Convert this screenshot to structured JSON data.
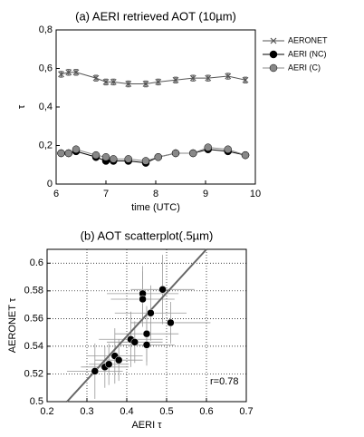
{
  "chart_data": [
    {
      "type": "line",
      "title": "(a) AERI retrieved AOT (10µm)",
      "x_label": "time (UTC)",
      "y_label": "τ",
      "xlim": [
        6,
        10
      ],
      "xticks": [
        6,
        7,
        8,
        9,
        10
      ],
      "ylim": [
        0,
        0.8
      ],
      "yticks": [
        0,
        {
          "value": 0.2,
          "label": "0,2"
        },
        {
          "value": 0.4,
          "label": "0,4"
        },
        {
          "value": 0.6,
          "label": "0,6"
        },
        {
          "value": 0.8,
          "label": "0,8"
        }
      ],
      "legend": "outside-right",
      "x": [
        6.1,
        6.25,
        6.4,
        6.8,
        7.0,
        7.15,
        7.45,
        7.8,
        8.05,
        8.4,
        8.75,
        9.05,
        9.45,
        9.8
      ],
      "series": [
        {
          "name": "AERONET",
          "color": "#555555",
          "marker": "x",
          "values": [
            0.57,
            0.58,
            0.58,
            0.55,
            0.53,
            0.53,
            0.52,
            0.52,
            0.53,
            0.54,
            0.55,
            0.55,
            0.56,
            0.54
          ],
          "errors": [
            0.015,
            0.015,
            0.015,
            0.015,
            0.015,
            0.015,
            0.015,
            0.015,
            0.015,
            0.015,
            0.015,
            0.015,
            0.015,
            0.015
          ]
        },
        {
          "name": "AERI (NC)",
          "color": "#000000",
          "marker": "circle",
          "values": [
            0.16,
            0.16,
            0.17,
            0.14,
            0.12,
            0.12,
            0.12,
            0.11,
            0.14,
            0.16,
            0.16,
            0.18,
            0.17,
            0.15
          ]
        },
        {
          "name": "AERI (C)",
          "color": "#888888",
          "marker": "circle",
          "values": [
            0.16,
            0.16,
            0.18,
            0.15,
            0.14,
            0.13,
            0.13,
            0.12,
            0.14,
            0.16,
            0.16,
            0.19,
            0.18,
            0.15
          ]
        }
      ]
    },
    {
      "type": "scatter",
      "title": "(b) AOT scatterplot(.5µm)",
      "x_label": "AERI τ",
      "y_label": "AERONET τ",
      "annotation": "r=0.78",
      "xlim": [
        0.2,
        0.7
      ],
      "xticks": [
        0.2,
        0.3,
        0.4,
        0.5,
        0.6,
        0.7
      ],
      "ylim": [
        0.5,
        0.61
      ],
      "yticks": [
        0.5,
        0.52,
        0.54,
        0.56,
        0.58,
        0.6
      ],
      "grid": true,
      "color": "#000000",
      "x": [
        0.32,
        0.345,
        0.355,
        0.37,
        0.38,
        0.41,
        0.42,
        0.44,
        0.44,
        0.45,
        0.45,
        0.46,
        0.49,
        0.51
      ],
      "y": [
        0.522,
        0.525,
        0.527,
        0.533,
        0.53,
        0.545,
        0.543,
        0.578,
        0.574,
        0.541,
        0.549,
        0.564,
        0.581,
        0.557
      ],
      "xerr": [
        0.07,
        0.06,
        0.05,
        0.07,
        0.06,
        0.08,
        0.07,
        0.09,
        0.08,
        0.07,
        0.08,
        0.09,
        0.08,
        0.1
      ],
      "yerr": [
        0.02,
        0.015,
        0.015,
        0.02,
        0.015,
        0.02,
        0.015,
        0.02,
        0.02,
        0.015,
        0.02,
        0.02,
        0.025,
        0.015
      ],
      "fit_line": {
        "color": "#666666",
        "x": [
          0.25,
          0.6
        ],
        "y": [
          0.5,
          0.61
        ]
      }
    }
  ]
}
